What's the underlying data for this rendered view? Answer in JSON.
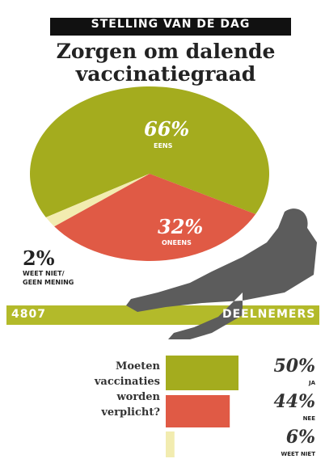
{
  "header": {
    "kicker": "STELLING VAN DE DAG",
    "participants": 4807,
    "participants_label": "DEELNEMERS"
  },
  "chart_data": [
    {
      "type": "pie",
      "title": "Zorgen om dalende vaccinatiegraad",
      "categories": [
        "EENS",
        "ONEENS",
        "WEET NIET/ GEEN MENING"
      ],
      "values": [
        66,
        32,
        2
      ],
      "value_labels": [
        "66%",
        "32%",
        "2%"
      ],
      "colors": [
        "#a4ac1e",
        "#e05a45",
        "#f2ecb0"
      ]
    },
    {
      "type": "bar",
      "title": "Moeten vaccinaties worden verplicht?",
      "categories": [
        "JA",
        "NEE",
        "WEET NIET"
      ],
      "values": [
        50,
        44,
        6
      ],
      "value_labels": [
        "50%",
        "44%",
        "6%"
      ],
      "colors": [
        "#a4ac1e",
        "#e05a45",
        "#f2ecb0"
      ]
    }
  ]
}
